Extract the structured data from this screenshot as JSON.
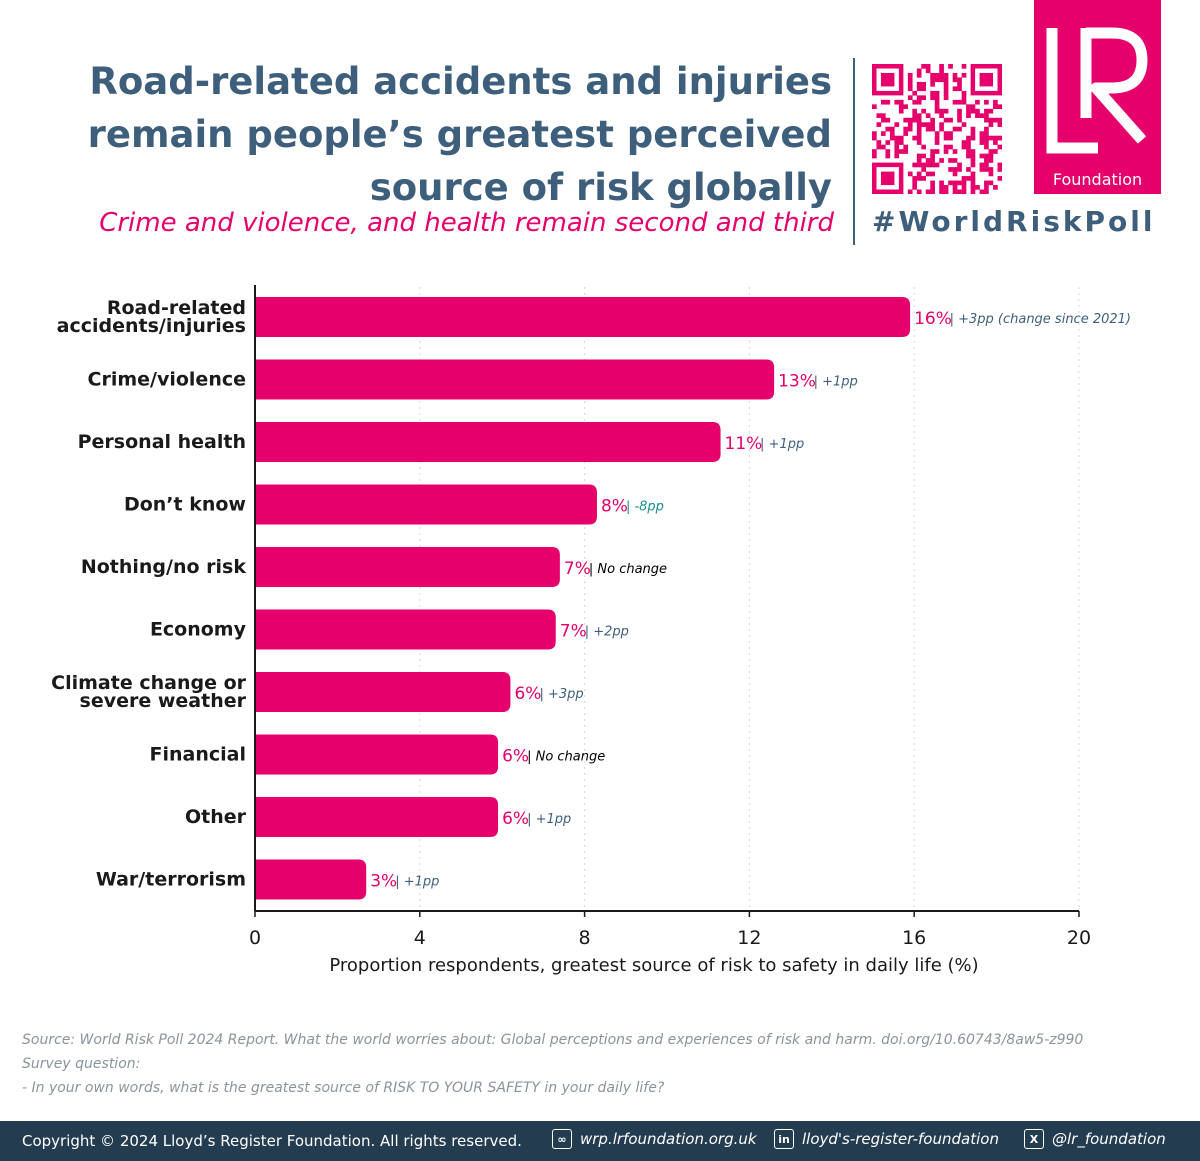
{
  "header": {
    "title_lines": [
      "Road-related accidents and injuries",
      "remain people’s greatest perceived",
      "source of risk globally"
    ],
    "subtitle": "Crime and violence, and health remain second and third",
    "logo_text": "Foundation",
    "logo_mark": "LR",
    "hashtag": "#WorldRiskPoll"
  },
  "colors": {
    "bar": "#e5006b",
    "title": "#3e5f7b",
    "change_up": "#3e5f7b",
    "change_down": "#1a8f8a",
    "change_none": "#000000",
    "footer": "#243c4f"
  },
  "chart_data": {
    "type": "bar",
    "orientation": "horizontal",
    "categories": [
      [
        "Road-related",
        "accidents/injuries"
      ],
      [
        "Crime/violence"
      ],
      [
        "Personal health"
      ],
      [
        "Don’t know"
      ],
      [
        "Nothing/no risk"
      ],
      [
        "Economy"
      ],
      [
        "Climate change or",
        "severe weather"
      ],
      [
        "Financial"
      ],
      [
        "Other"
      ],
      [
        "War/terrorism"
      ]
    ],
    "values": [
      15.9,
      12.6,
      11.3,
      8.3,
      7.4,
      7.3,
      6.2,
      5.9,
      5.9,
      2.7
    ],
    "value_labels": [
      "16%",
      "13%",
      "11%",
      "8%",
      "7%",
      "7%",
      "6%",
      "6%",
      "6%",
      "3%"
    ],
    "change_labels": [
      "| +3pp (change since 2021)",
      "| +1pp",
      "| +1pp",
      "| -8pp",
      "| No change",
      "| +2pp",
      "| +3pp",
      "| No change",
      "| +1pp",
      "| +1pp"
    ],
    "change_kind": [
      "up",
      "up",
      "up",
      "down",
      "none",
      "up",
      "up",
      "none",
      "up",
      "up"
    ],
    "xlim": [
      0,
      20
    ],
    "xticks": [
      0,
      4,
      8,
      12,
      16,
      20
    ],
    "xlabel": "Proportion respondents, greatest source of risk to safety in daily life (%)",
    "grid": true
  },
  "source": {
    "citation": "Source: World Risk Poll 2024 Report. What the world worries about: Global perceptions and experiences of risk and harm. doi.org/10.60743/8aw5-z990",
    "question_label": "Survey question:",
    "question": "-     In your own words, what is the greatest source of RISK TO YOUR SAFETY in your daily life?"
  },
  "footer": {
    "copyright": "Copyright © 2024 Lloyd’s Register Foundation. All rights reserved.",
    "website": "wrp.lrfoundation.org.uk",
    "linkedin": "lloyd's-register-foundation",
    "x_handle": "@lr_foundation",
    "icons": [
      "link-icon",
      "linkedin-icon",
      "x-icon"
    ]
  }
}
